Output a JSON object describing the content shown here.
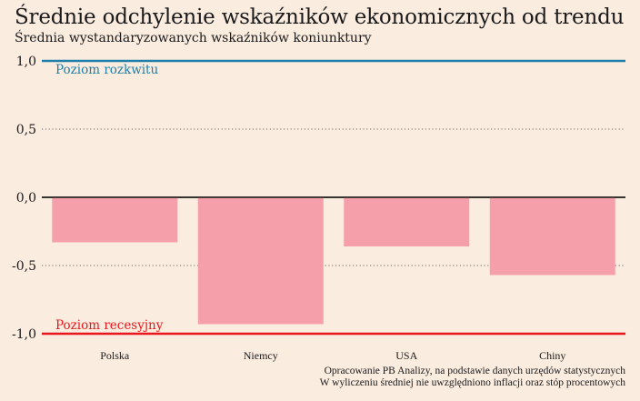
{
  "title": "Średnie odchylenie wskaźników ekonomicznych od trendu",
  "subtitle": "Średnia wystandaryzowanych wskaźników koniunktury",
  "source_lines": [
    "Opracowanie PB Analizy, na podstawie danych urzędów statystycznych",
    "W wyliczeniu średniej nie uwzględniono inflacji oraz stóp procentowych"
  ],
  "chart_data": {
    "type": "bar",
    "categories": [
      "Polska",
      "Niemcy",
      "USA",
      "Chiny"
    ],
    "values": [
      -0.33,
      -0.93,
      -0.36,
      -0.57
    ],
    "ylim": [
      -1.0,
      1.0
    ],
    "yticks": [
      1.0,
      0.5,
      0.0,
      -0.5,
      -1.0
    ],
    "ytick_labels": [
      "1,0",
      "0,5",
      "0,0",
      "-0,5",
      "-1,0"
    ],
    "grid": "dotted horizontal",
    "reference_lines": [
      {
        "value": 1.0,
        "label": "Poziom rozkwitu",
        "color": "#1f7fa8"
      },
      {
        "value": -1.0,
        "label": "Poziom recesyjny",
        "color": "#e8171d"
      }
    ],
    "bar_color": "#f59faa"
  }
}
